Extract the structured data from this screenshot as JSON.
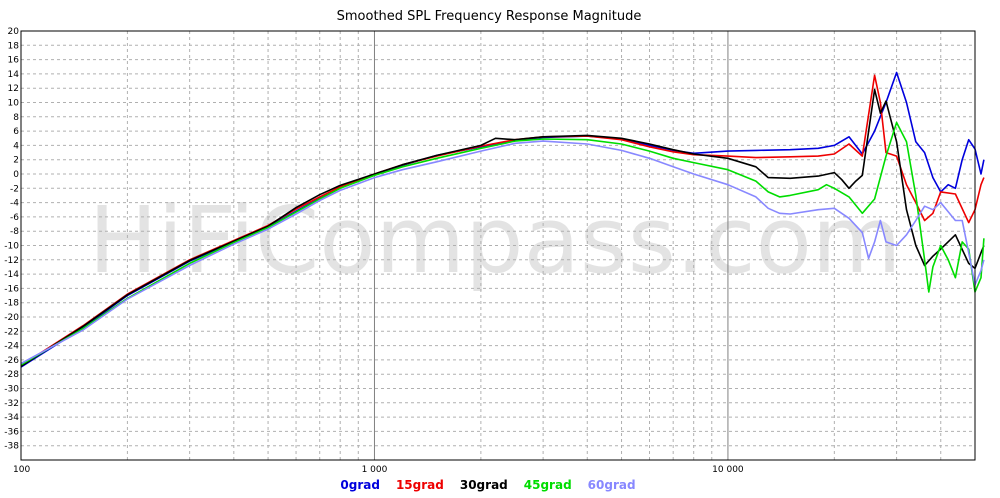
{
  "chart_data": {
    "type": "line",
    "title": "Smoothed SPL Frequency Response Magnitude",
    "watermark": "HiFiCompass.com",
    "x_scale": "log",
    "xlim": [
      100,
      50000
    ],
    "ylim": [
      -40,
      20
    ],
    "x_tick_labels": [
      {
        "value": 100,
        "label": "100"
      },
      {
        "value": 1000,
        "label": "1 000"
      },
      {
        "value": 10000,
        "label": "10 000"
      }
    ],
    "y_ticks": [
      20,
      18,
      16,
      14,
      12,
      10,
      8,
      6,
      4,
      2,
      0,
      -2,
      -4,
      -6,
      -8,
      -10,
      -12,
      -14,
      -16,
      -18,
      -20,
      -22,
      -24,
      -26,
      -28,
      -30,
      -32,
      -34,
      -36,
      -38
    ],
    "grid": true,
    "legend_position": "bottom-center",
    "series": [
      {
        "name": "0grad",
        "color": "#0000dd",
        "points": [
          [
            100,
            -27
          ],
          [
            150,
            -21.5
          ],
          [
            200,
            -17
          ],
          [
            300,
            -12.2
          ],
          [
            400,
            -9.5
          ],
          [
            500,
            -7.4
          ],
          [
            600,
            -5.2
          ],
          [
            700,
            -3.4
          ],
          [
            800,
            -1.9
          ],
          [
            1000,
            -0.1
          ],
          [
            1200,
            1.2
          ],
          [
            1500,
            2.6
          ],
          [
            2000,
            3.8
          ],
          [
            2500,
            4.7
          ],
          [
            3000,
            5.1
          ],
          [
            4000,
            5.3
          ],
          [
            5000,
            4.9
          ],
          [
            6000,
            4.0
          ],
          [
            7000,
            3.3
          ],
          [
            8000,
            2.9
          ],
          [
            10000,
            3.2
          ],
          [
            12000,
            3.3
          ],
          [
            15000,
            3.4
          ],
          [
            18000,
            3.6
          ],
          [
            20000,
            4.0
          ],
          [
            22000,
            5.2
          ],
          [
            24000,
            2.8
          ],
          [
            26000,
            6.0
          ],
          [
            28000,
            10
          ],
          [
            30000,
            14.2
          ],
          [
            32000,
            10
          ],
          [
            34000,
            4.5
          ],
          [
            36000,
            3.0
          ],
          [
            38000,
            -0.5
          ],
          [
            40000,
            -2.5
          ],
          [
            42000,
            -1.5
          ],
          [
            44000,
            -2.0
          ],
          [
            46000,
            2.0
          ],
          [
            48000,
            4.8
          ],
          [
            50000,
            3.5
          ],
          [
            52000,
            0
          ],
          [
            53000,
            2.0
          ]
        ]
      },
      {
        "name": "15grad",
        "color": "#ee0000",
        "points": [
          [
            100,
            -26.8
          ],
          [
            150,
            -21.2
          ],
          [
            200,
            -16.8
          ],
          [
            300,
            -12.0
          ],
          [
            400,
            -9.3
          ],
          [
            500,
            -7.2
          ],
          [
            600,
            -4.9
          ],
          [
            700,
            -3.2
          ],
          [
            800,
            -1.8
          ],
          [
            1000,
            0
          ],
          [
            1200,
            1.3
          ],
          [
            1500,
            2.5
          ],
          [
            2000,
            3.9
          ],
          [
            2500,
            4.8
          ],
          [
            3000,
            5.2
          ],
          [
            4000,
            5.3
          ],
          [
            5000,
            4.8
          ],
          [
            6000,
            3.8
          ],
          [
            7000,
            3.1
          ],
          [
            8000,
            2.7
          ],
          [
            10000,
            2.5
          ],
          [
            12000,
            2.3
          ],
          [
            15000,
            2.4
          ],
          [
            18000,
            2.5
          ],
          [
            20000,
            2.8
          ],
          [
            22000,
            4.2
          ],
          [
            24000,
            2.5
          ],
          [
            26000,
            13.8
          ],
          [
            27000,
            10
          ],
          [
            28000,
            3.0
          ],
          [
            30000,
            2.5
          ],
          [
            32000,
            -1.5
          ],
          [
            34000,
            -4
          ],
          [
            36000,
            -6.5
          ],
          [
            38000,
            -5.5
          ],
          [
            40000,
            -2.5
          ],
          [
            44000,
            -2.8
          ],
          [
            48000,
            -6.8
          ],
          [
            50000,
            -5
          ],
          [
            52000,
            -1.5
          ],
          [
            53000,
            -0.5
          ]
        ]
      },
      {
        "name": "30grad",
        "color": "#000000",
        "points": [
          [
            100,
            -26.9
          ],
          [
            150,
            -21.3
          ],
          [
            200,
            -16.9
          ],
          [
            300,
            -12.1
          ],
          [
            400,
            -9.4
          ],
          [
            500,
            -7.3
          ],
          [
            600,
            -4.7
          ],
          [
            700,
            -2.9
          ],
          [
            800,
            -1.6
          ],
          [
            1000,
            0
          ],
          [
            1200,
            1.3
          ],
          [
            1500,
            2.6
          ],
          [
            2000,
            4.0
          ],
          [
            2200,
            5.0
          ],
          [
            2500,
            4.8
          ],
          [
            3000,
            5.2
          ],
          [
            4000,
            5.4
          ],
          [
            5000,
            5.0
          ],
          [
            6000,
            4.2
          ],
          [
            7000,
            3.4
          ],
          [
            8000,
            2.8
          ],
          [
            10000,
            2.2
          ],
          [
            12000,
            1.0
          ],
          [
            13000,
            -0.5
          ],
          [
            15000,
            -0.6
          ],
          [
            18000,
            -0.3
          ],
          [
            20000,
            0.2
          ],
          [
            21000,
            -0.8
          ],
          [
            22000,
            -2.0
          ],
          [
            23000,
            -1.0
          ],
          [
            24000,
            -0.2
          ],
          [
            26000,
            11.8
          ],
          [
            27000,
            8.5
          ],
          [
            28000,
            10.2
          ],
          [
            30000,
            4.5
          ],
          [
            32000,
            -5
          ],
          [
            34000,
            -10
          ],
          [
            36000,
            -12.8
          ],
          [
            38000,
            -11.5
          ],
          [
            40000,
            -10.5
          ],
          [
            44000,
            -8.5
          ],
          [
            48000,
            -12.5
          ],
          [
            50000,
            -13.2
          ],
          [
            52000,
            -11
          ],
          [
            53000,
            -10
          ]
        ]
      },
      {
        "name": "45grad",
        "color": "#00dd00",
        "points": [
          [
            100,
            -26.7
          ],
          [
            150,
            -21.6
          ],
          [
            200,
            -17.4
          ],
          [
            300,
            -12.5
          ],
          [
            400,
            -9.6
          ],
          [
            500,
            -7.5
          ],
          [
            600,
            -5.3
          ],
          [
            700,
            -3.5
          ],
          [
            800,
            -2.0
          ],
          [
            1000,
            -0.2
          ],
          [
            1200,
            1.0
          ],
          [
            1500,
            2.2
          ],
          [
            2000,
            3.6
          ],
          [
            2500,
            4.6
          ],
          [
            3000,
            4.9
          ],
          [
            4000,
            4.8
          ],
          [
            5000,
            4.2
          ],
          [
            6000,
            3.2
          ],
          [
            7000,
            2.2
          ],
          [
            8000,
            1.6
          ],
          [
            10000,
            0.6
          ],
          [
            12000,
            -1.0
          ],
          [
            13000,
            -2.5
          ],
          [
            14000,
            -3.2
          ],
          [
            15000,
            -3.0
          ],
          [
            18000,
            -2.2
          ],
          [
            19000,
            -1.5
          ],
          [
            20000,
            -2.0
          ],
          [
            22000,
            -3.2
          ],
          [
            24000,
            -5.5
          ],
          [
            26000,
            -3.5
          ],
          [
            28000,
            2.5
          ],
          [
            30000,
            7.2
          ],
          [
            32000,
            4.5
          ],
          [
            34000,
            -3
          ],
          [
            36000,
            -12
          ],
          [
            37000,
            -16.5
          ],
          [
            38000,
            -13
          ],
          [
            40000,
            -10
          ],
          [
            42000,
            -12
          ],
          [
            44000,
            -14.5
          ],
          [
            46000,
            -9.5
          ],
          [
            48000,
            -10.5
          ],
          [
            50000,
            -16.5
          ],
          [
            52000,
            -14.5
          ],
          [
            53000,
            -9
          ]
        ]
      },
      {
        "name": "60grad",
        "color": "#8888ff",
        "points": [
          [
            100,
            -26.5
          ],
          [
            150,
            -21.8
          ],
          [
            200,
            -17.5
          ],
          [
            300,
            -12.8
          ],
          [
            400,
            -9.8
          ],
          [
            500,
            -7.7
          ],
          [
            600,
            -5.6
          ],
          [
            700,
            -3.7
          ],
          [
            800,
            -2.3
          ],
          [
            1000,
            -0.5
          ],
          [
            1200,
            0.6
          ],
          [
            1500,
            1.7
          ],
          [
            2000,
            3.2
          ],
          [
            2500,
            4.3
          ],
          [
            3000,
            4.6
          ],
          [
            4000,
            4.2
          ],
          [
            5000,
            3.3
          ],
          [
            6000,
            2.2
          ],
          [
            7000,
            1.0
          ],
          [
            8000,
            0.0
          ],
          [
            10000,
            -1.5
          ],
          [
            12000,
            -3.2
          ],
          [
            13000,
            -4.8
          ],
          [
            14000,
            -5.5
          ],
          [
            15000,
            -5.6
          ],
          [
            18000,
            -5.0
          ],
          [
            20000,
            -4.8
          ],
          [
            22000,
            -6.2
          ],
          [
            24000,
            -8.2
          ],
          [
            25000,
            -11.8
          ],
          [
            26000,
            -9.5
          ],
          [
            27000,
            -6.5
          ],
          [
            28000,
            -9.5
          ],
          [
            30000,
            -10
          ],
          [
            32000,
            -8.5
          ],
          [
            34000,
            -6.5
          ],
          [
            36000,
            -4.5
          ],
          [
            38000,
            -5.0
          ],
          [
            40000,
            -4.0
          ],
          [
            44000,
            -6.5
          ],
          [
            46000,
            -6.5
          ],
          [
            48000,
            -11
          ],
          [
            50000,
            -15.5
          ],
          [
            52000,
            -13.5
          ],
          [
            53000,
            -12
          ]
        ]
      }
    ]
  }
}
